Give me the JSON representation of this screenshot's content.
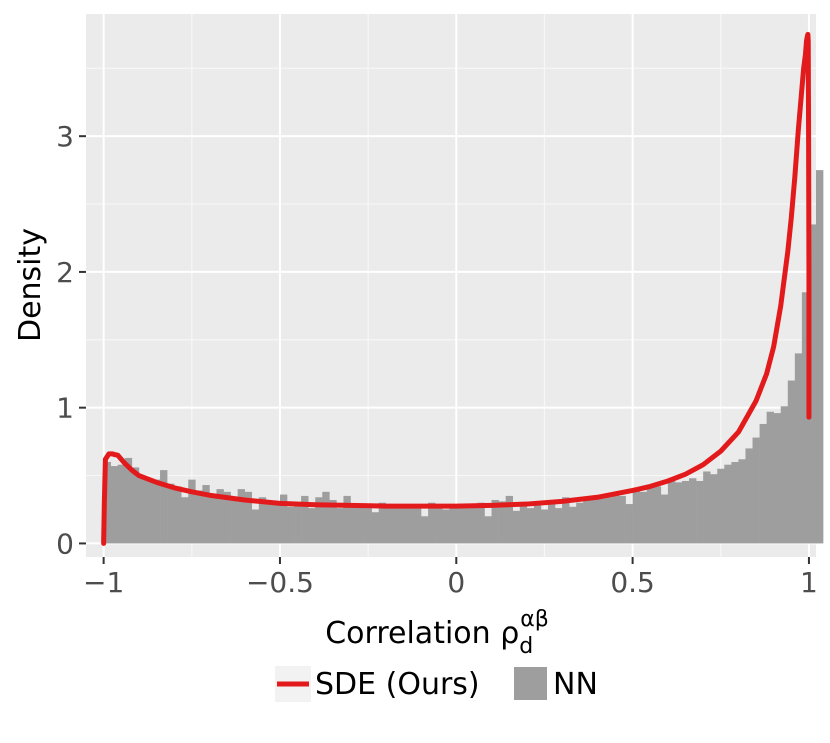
{
  "chart_data": {
    "type": "bar",
    "title": "",
    "xlabel": "Correlation ρ",
    "xlabel_sub": "d",
    "xlabel_sup": "αβ",
    "ylabel": "Density",
    "xlim": [
      -1.05,
      1.02
    ],
    "ylim": [
      -0.1,
      3.9
    ],
    "x_ticks": [
      -1,
      -0.5,
      0,
      0.5,
      1
    ],
    "x_tick_labels": [
      "−1",
      "−0.5",
      "0",
      "0.5",
      "1"
    ],
    "y_ticks": [
      0,
      1,
      2,
      3
    ],
    "y_tick_labels": [
      "0",
      "1",
      "2",
      "3"
    ],
    "grid": true,
    "legend_position": "bottom",
    "series": [
      {
        "name": "SDE (Ours)",
        "kind": "line",
        "color": "#e31a1c",
        "x": [
          -1.0,
          -0.998,
          -0.995,
          -0.99,
          -0.985,
          -0.98,
          -0.975,
          -0.97,
          -0.96,
          -0.95,
          -0.94,
          -0.92,
          -0.9,
          -0.85,
          -0.8,
          -0.75,
          -0.7,
          -0.6,
          -0.5,
          -0.4,
          -0.3,
          -0.2,
          -0.1,
          0.0,
          0.1,
          0.2,
          0.3,
          0.4,
          0.5,
          0.55,
          0.6,
          0.65,
          0.7,
          0.75,
          0.8,
          0.85,
          0.88,
          0.9,
          0.92,
          0.94,
          0.95,
          0.96,
          0.97,
          0.98,
          0.985,
          0.99,
          0.993,
          0.995,
          0.997,
          0.998,
          0.999,
          1.0,
          1.0,
          1.0
        ],
        "y": [
          0.0,
          0.3,
          0.62,
          0.64,
          0.66,
          0.66,
          0.66,
          0.655,
          0.65,
          0.62,
          0.59,
          0.54,
          0.5,
          0.45,
          0.41,
          0.38,
          0.355,
          0.32,
          0.295,
          0.285,
          0.28,
          0.275,
          0.275,
          0.275,
          0.28,
          0.29,
          0.31,
          0.34,
          0.39,
          0.42,
          0.46,
          0.51,
          0.58,
          0.68,
          0.82,
          1.05,
          1.25,
          1.45,
          1.75,
          2.15,
          2.4,
          2.7,
          3.05,
          3.35,
          3.5,
          3.6,
          3.7,
          3.73,
          3.75,
          3.7,
          3.0,
          2.0,
          1.4,
          0.93
        ]
      },
      {
        "name": "NN",
        "kind": "histogram",
        "color": "#9e9e9e",
        "bin_width": 0.02,
        "bin_start": -1.0,
        "values": [
          0.6,
          0.57,
          0.58,
          0.63,
          0.56,
          0.48,
          0.46,
          0.47,
          0.54,
          0.44,
          0.42,
          0.34,
          0.47,
          0.39,
          0.43,
          0.36,
          0.4,
          0.38,
          0.32,
          0.4,
          0.38,
          0.25,
          0.34,
          0.3,
          0.3,
          0.36,
          0.27,
          0.3,
          0.35,
          0.26,
          0.34,
          0.38,
          0.32,
          0.26,
          0.35,
          0.28,
          0.29,
          0.26,
          0.23,
          0.3,
          0.28,
          0.26,
          0.28,
          0.26,
          0.29,
          0.2,
          0.3,
          0.27,
          0.25,
          0.28,
          0.27,
          0.26,
          0.29,
          0.3,
          0.2,
          0.32,
          0.31,
          0.35,
          0.24,
          0.28,
          0.26,
          0.28,
          0.25,
          0.3,
          0.26,
          0.34,
          0.27,
          0.3,
          0.33,
          0.35,
          0.33,
          0.34,
          0.36,
          0.35,
          0.29,
          0.4,
          0.38,
          0.41,
          0.42,
          0.36,
          0.46,
          0.45,
          0.46,
          0.48,
          0.46,
          0.53,
          0.51,
          0.55,
          0.58,
          0.6,
          0.62,
          0.7,
          0.78,
          0.88,
          0.97,
          0.96,
          1.01,
          1.2,
          1.4,
          1.85,
          2.35,
          2.75
        ]
      }
    ]
  }
}
